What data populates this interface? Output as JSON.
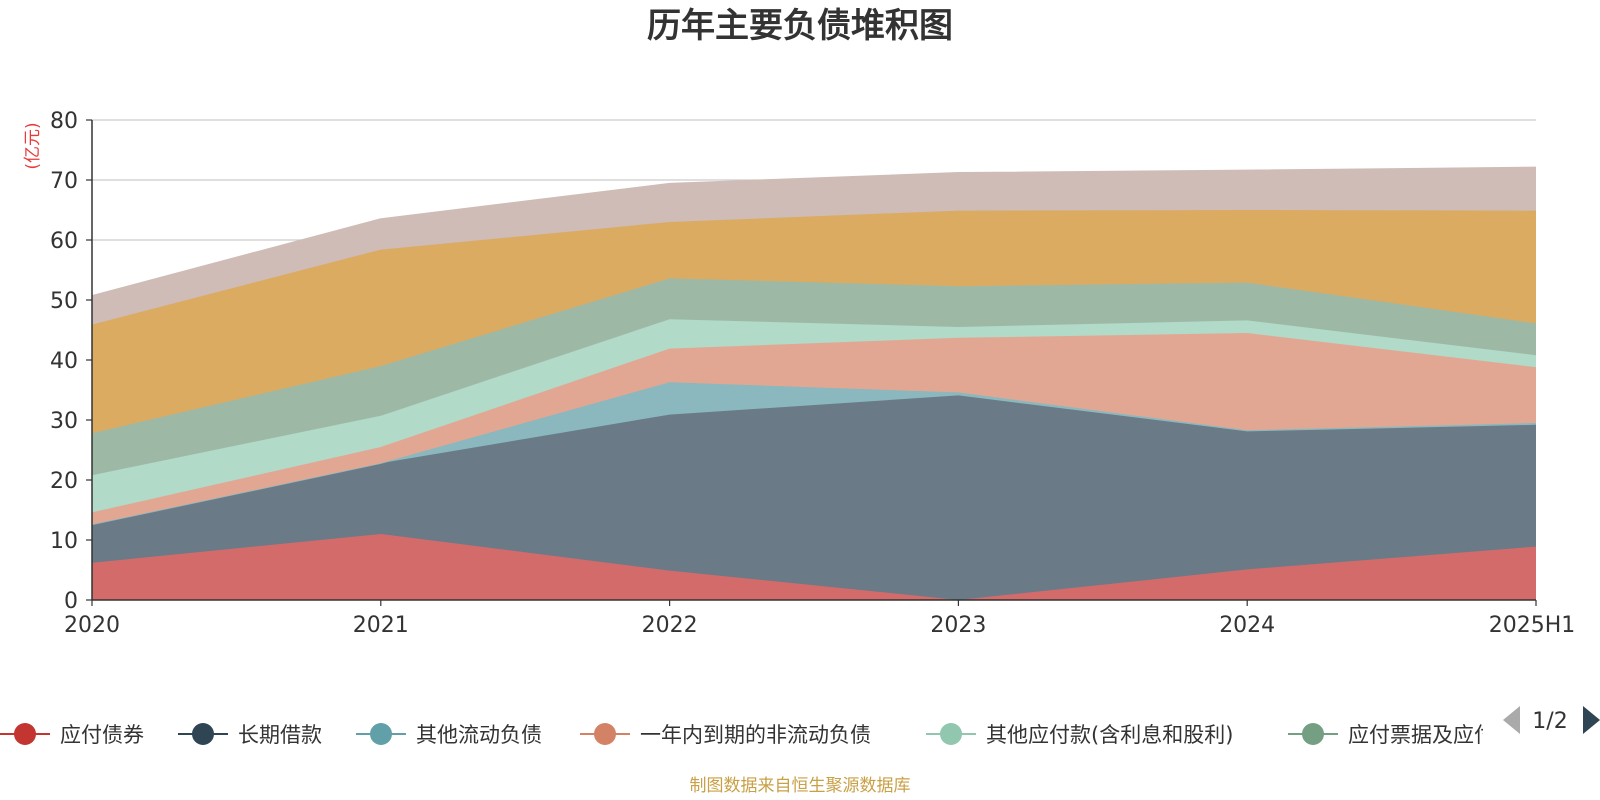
{
  "chart_data": {
    "type": "area",
    "stacked": true,
    "title": "历年主要负债堆积图",
    "unit": "(亿元)",
    "categories": [
      "2020",
      "2021",
      "2022",
      "2023",
      "2024",
      "2025H1"
    ],
    "ylim": [
      0,
      80
    ],
    "yticks": [
      "0",
      "10",
      "20",
      "30",
      "40",
      "50",
      "60",
      "70",
      "80"
    ],
    "grid": true,
    "legend_position": "bottom",
    "series": [
      {
        "name": "应付债券",
        "color": "#d46b6b",
        "marker_color": "#c23531",
        "values": [
          6.2,
          11.0,
          4.9,
          0.0,
          5.1,
          8.9
        ]
      },
      {
        "name": "长期借款",
        "color": "#6b7a87",
        "marker_color": "#2f4554",
        "values": [
          6.4,
          11.8,
          26.0,
          34.1,
          23.0,
          20.3
        ]
      },
      {
        "name": "其他流动负债",
        "color": "#8ab8be",
        "marker_color": "#61a0a8",
        "values": [
          0.0,
          0.0,
          5.4,
          0.5,
          0.2,
          0.3
        ]
      },
      {
        "name": "一年内到期的非流动负债",
        "color": "#e2a793",
        "marker_color": "#d48265",
        "values": [
          2.0,
          2.7,
          5.6,
          9.1,
          16.2,
          9.3
        ]
      },
      {
        "name": "其他应付款(含利息和股利)",
        "color": "#b1dac8",
        "marker_color": "#91c7ae",
        "values": [
          6.2,
          5.2,
          4.9,
          1.8,
          2.1,
          2.0
        ]
      },
      {
        "name": "应付票据及应付账款",
        "color": "#9db9a6",
        "marker_color": "#749f83",
        "values": [
          7.0,
          8.3,
          6.8,
          6.8,
          6.3,
          5.3
        ]
      },
      {
        "name": "",
        "color": "#dbab62",
        "marker_color": "#ca8622",
        "values": [
          18.1,
          19.4,
          9.4,
          12.6,
          12.1,
          18.8
        ]
      },
      {
        "name": "",
        "color": "#cfbcb6",
        "marker_color": "#bda29a",
        "values": [
          4.8,
          5.1,
          6.4,
          6.3,
          6.6,
          7.2
        ]
      }
    ]
  },
  "legend_pager": "1/2",
  "source": "制图数据来自恒生聚源数据库"
}
